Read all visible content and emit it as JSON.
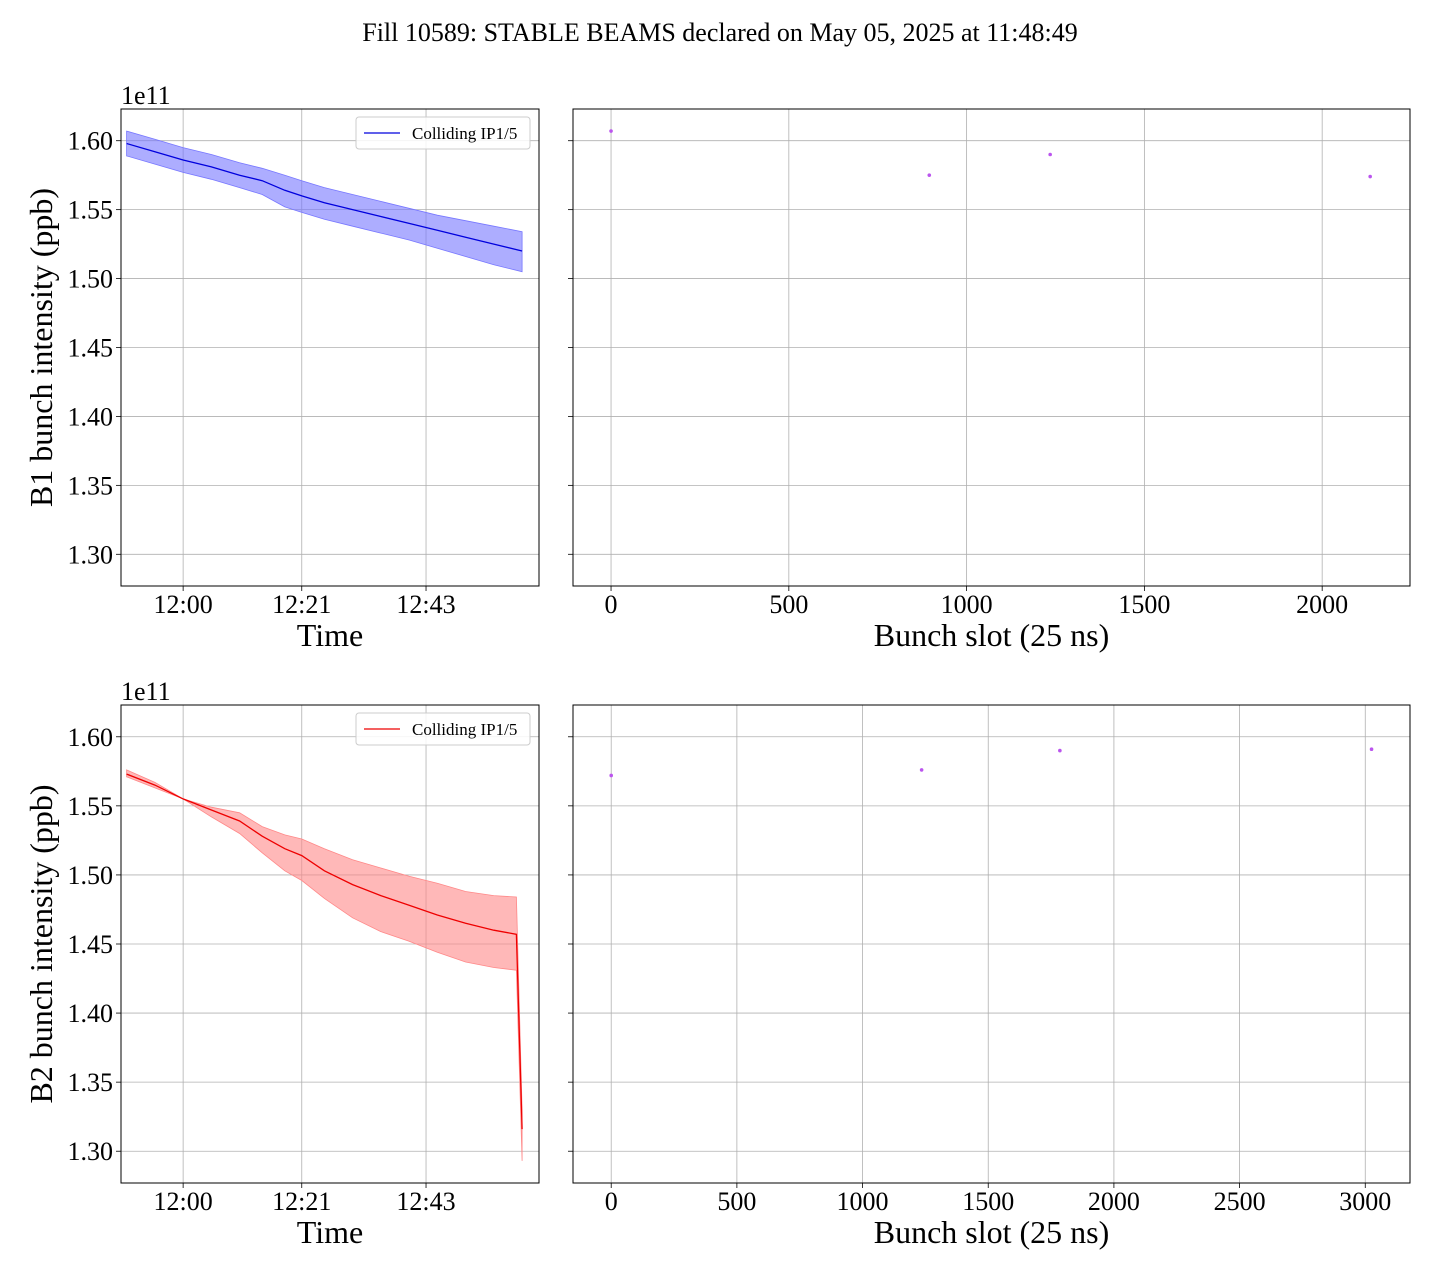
{
  "figure": {
    "title": "Fill 10589: STABLE BEAMS declared on May 05, 2025 at 11:48:49"
  },
  "chart_data": [
    {
      "type": "area",
      "panel": "b1-time",
      "xlabel": "Time",
      "ylabel": "B1 bunch intensity (ppb)",
      "y_offset_label": "1e11",
      "xticks": [
        "12:00",
        "12:21",
        "12:43"
      ],
      "xtick_values": [
        0,
        21,
        43
      ],
      "x_unit": "minutes after 12:00",
      "xlim": [
        -11,
        63
      ],
      "yticks": [
        "1.30",
        "1.35",
        "1.40",
        "1.45",
        "1.50",
        "1.55",
        "1.60"
      ],
      "ytick_values": [
        1.3,
        1.35,
        1.4,
        1.45,
        1.5,
        1.55,
        1.6
      ],
      "ylim": [
        1.277,
        1.623
      ],
      "grid": true,
      "legend": {
        "placement": "top-right",
        "label": "Colliding IP1/5"
      },
      "color": "#0000dd",
      "fill_color": "#7777ff",
      "series": [
        {
          "name": "Colliding IP1/5",
          "x": [
            -10,
            -5,
            0,
            5,
            10,
            14,
            18,
            21,
            25,
            30,
            35,
            40,
            45,
            50,
            55,
            60
          ],
          "y": [
            1.598,
            1.592,
            1.586,
            1.581,
            1.575,
            1.571,
            1.564,
            1.56,
            1.555,
            1.55,
            1.545,
            1.54,
            1.535,
            1.53,
            1.525,
            1.52
          ],
          "y_low": [
            1.589,
            1.583,
            1.577,
            1.572,
            1.566,
            1.561,
            1.552,
            1.548,
            1.543,
            1.538,
            1.533,
            1.528,
            1.522,
            1.516,
            1.51,
            1.505
          ],
          "y_high": [
            1.607,
            1.601,
            1.595,
            1.59,
            1.584,
            1.58,
            1.575,
            1.571,
            1.566,
            1.561,
            1.556,
            1.551,
            1.546,
            1.542,
            1.538,
            1.534
          ]
        }
      ]
    },
    {
      "type": "scatter",
      "panel": "b1-slot",
      "xlabel": "Bunch slot (25 ns)",
      "xticks": [
        "0",
        "500",
        "1000",
        "1500",
        "2000"
      ],
      "xtick_values": [
        0,
        500,
        1000,
        1500,
        2000
      ],
      "xlim": [
        -107,
        2247
      ],
      "ylim": [
        1.277,
        1.623
      ],
      "grid": true,
      "color": "#bb55ee",
      "points": {
        "x": [
          0,
          895,
          1235,
          2135
        ],
        "y": [
          1.607,
          1.575,
          1.59,
          1.574
        ]
      }
    },
    {
      "type": "area",
      "panel": "b2-time",
      "xlabel": "Time",
      "ylabel": "B2 bunch intensity (ppb)",
      "y_offset_label": "1e11",
      "xticks": [
        "12:00",
        "12:21",
        "12:43"
      ],
      "xtick_values": [
        0,
        21,
        43
      ],
      "x_unit": "minutes after 12:00",
      "xlim": [
        -11,
        63
      ],
      "yticks": [
        "1.30",
        "1.35",
        "1.40",
        "1.45",
        "1.50",
        "1.55",
        "1.60"
      ],
      "ytick_values": [
        1.3,
        1.35,
        1.4,
        1.45,
        1.5,
        1.55,
        1.6
      ],
      "ylim": [
        1.277,
        1.623
      ],
      "grid": true,
      "legend": {
        "placement": "top-right",
        "label": "Colliding IP1/5"
      },
      "color": "#ee0000",
      "fill_color": "#ff8888",
      "series": [
        {
          "name": "Colliding IP1/5",
          "x": [
            -10,
            -5,
            0,
            5,
            10,
            14,
            18,
            21,
            25,
            30,
            35,
            40,
            45,
            50,
            55,
            59,
            60
          ],
          "y": [
            1.573,
            1.565,
            1.555,
            1.547,
            1.539,
            1.528,
            1.519,
            1.514,
            1.503,
            1.493,
            1.485,
            1.478,
            1.471,
            1.465,
            1.46,
            1.457,
            1.316
          ],
          "y_low": [
            1.571,
            1.563,
            1.555,
            1.542,
            1.53,
            1.516,
            1.503,
            1.496,
            1.483,
            1.469,
            1.459,
            1.452,
            1.444,
            1.437,
            1.433,
            1.431,
            1.293
          ],
          "y_high": [
            1.576,
            1.567,
            1.555,
            1.549,
            1.545,
            1.535,
            1.529,
            1.526,
            1.519,
            1.511,
            1.505,
            1.499,
            1.494,
            1.488,
            1.485,
            1.484,
            1.33
          ]
        }
      ]
    },
    {
      "type": "scatter",
      "panel": "b2-slot",
      "xlabel": "Bunch slot (25 ns)",
      "xticks": [
        "0",
        "500",
        "1000",
        "1500",
        "2000",
        "2500",
        "3000"
      ],
      "xtick_values": [
        0,
        500,
        1000,
        1500,
        2000,
        2500,
        3000
      ],
      "xlim": [
        -152,
        3178
      ],
      "ylim": [
        1.277,
        1.623
      ],
      "grid": true,
      "color": "#bb55ee",
      "points": {
        "x": [
          0,
          1235,
          1785,
          3025
        ],
        "y": [
          1.572,
          1.576,
          1.59,
          1.591
        ]
      }
    }
  ]
}
